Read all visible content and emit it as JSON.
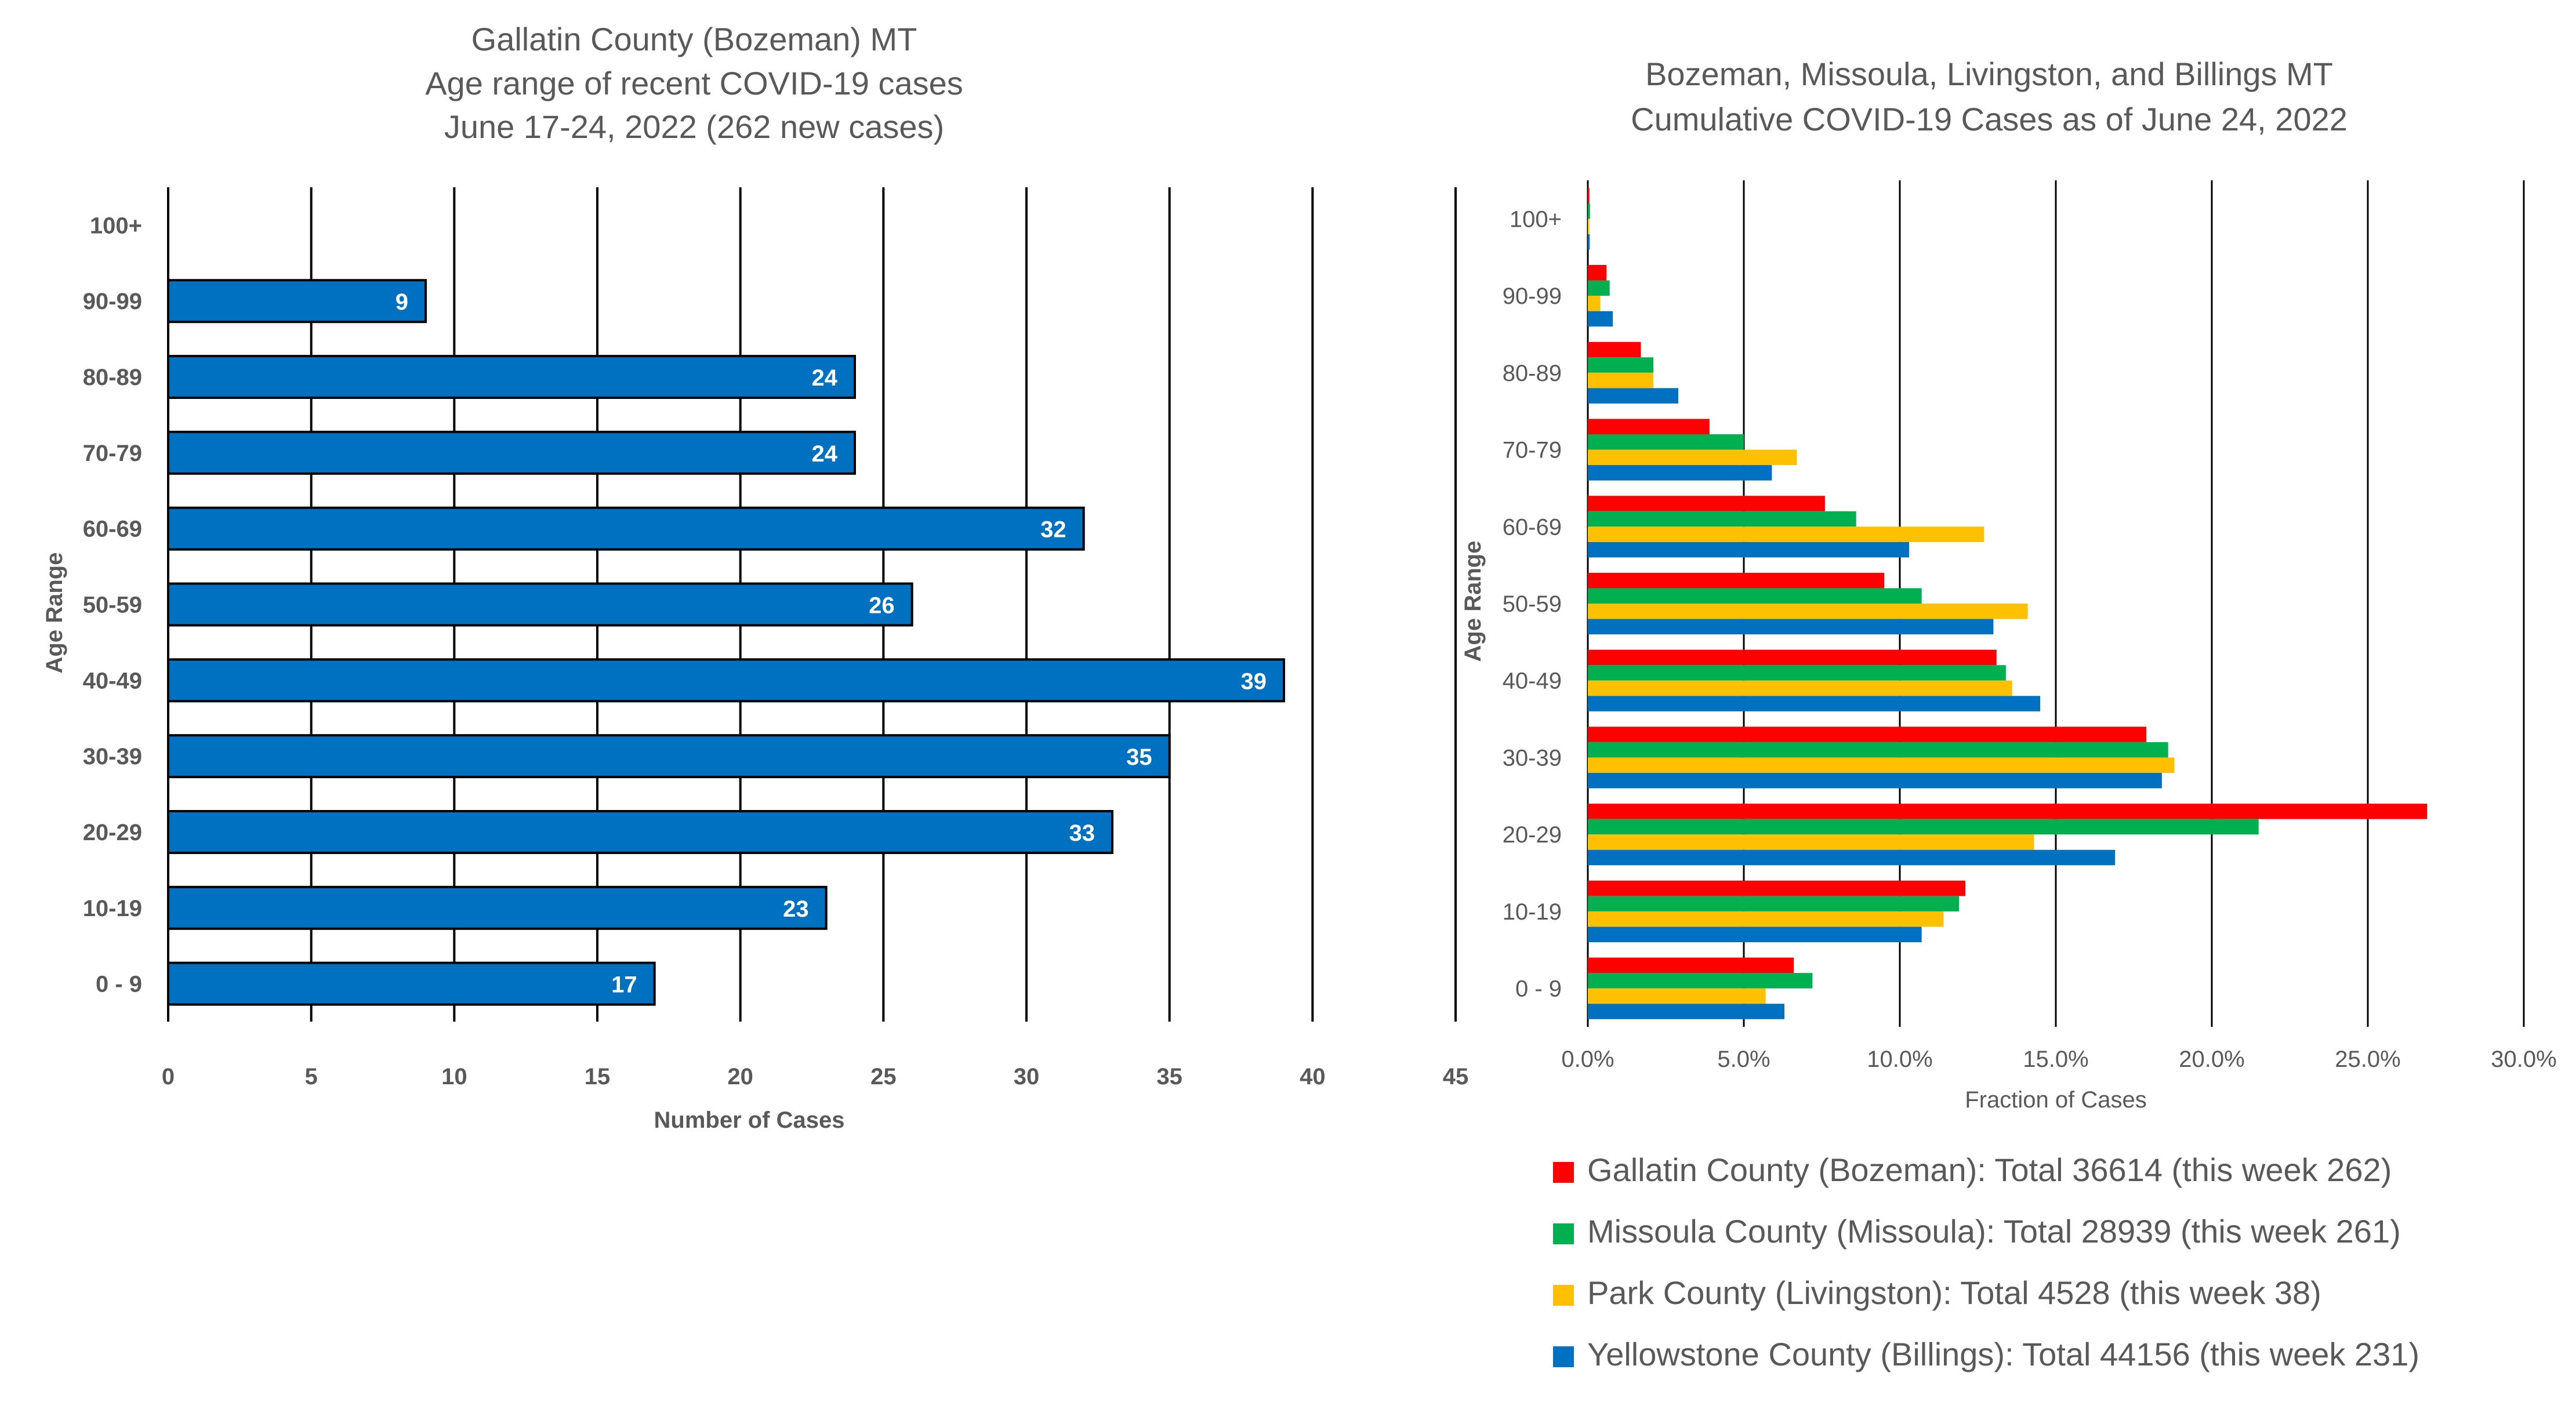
{
  "chart_data": [
    {
      "type": "bar",
      "orientation": "horizontal",
      "title_lines": [
        "Gallatin County (Bozeman) MT",
        "Age range of recent COVID-19 cases",
        "June 17-24, 2022 (262 new cases)"
      ],
      "xlabel": "Number of Cases",
      "ylabel": "Age Range",
      "xlim": [
        0,
        45
      ],
      "xticks": [
        0,
        5,
        10,
        15,
        20,
        25,
        30,
        35,
        40,
        45
      ],
      "xtick_labels": [
        "0",
        "5",
        "10",
        "15",
        "20",
        "25",
        "30",
        "35",
        "40",
        "45"
      ],
      "categories": [
        "100+",
        "90-99",
        "80-89",
        "70-79",
        "60-69",
        "50-59",
        "40-49",
        "30-39",
        "20-29",
        "10-19",
        "0 - 9"
      ],
      "values": [
        0,
        9,
        24,
        24,
        32,
        26,
        39,
        35,
        33,
        23,
        17
      ],
      "value_labels": [
        "",
        "9",
        "24",
        "24",
        "32",
        "26",
        "39",
        "35",
        "33",
        "23",
        "17"
      ],
      "bar_color": "#0070C0",
      "grid": "vertical lines",
      "legend": "none"
    },
    {
      "type": "bar",
      "orientation": "horizontal",
      "title_lines": [
        "Bozeman, Missoula, Livingston, and Billings MT",
        "Cumulative COVID-19 Cases as of June 24, 2022"
      ],
      "xlabel": "Fraction of Cases",
      "ylabel": "Age Range",
      "xlim": [
        0,
        30
      ],
      "xticks": [
        0,
        5,
        10,
        15,
        20,
        25,
        30
      ],
      "xtick_labels": [
        "0.0%",
        "5.0%",
        "10.0%",
        "15.0%",
        "20.0%",
        "25.0%",
        "30.0%"
      ],
      "categories": [
        "100+",
        "90-99",
        "80-89",
        "70-79",
        "60-69",
        "50-59",
        "40-49",
        "30-39",
        "20-29",
        "10-19",
        "0 - 9"
      ],
      "series": [
        {
          "name": "Gallatin County (Bozeman): Total 36614 (this week 262)",
          "color": "#FF0000",
          "values": [
            0.05,
            0.6,
            1.7,
            3.9,
            7.6,
            9.5,
            13.1,
            17.9,
            26.9,
            12.1,
            6.6
          ]
        },
        {
          "name": "Missoula County (Missoula): Total 28939 (this week 261)",
          "color": "#00B050",
          "values": [
            0.07,
            0.7,
            2.1,
            5.0,
            8.6,
            10.7,
            13.4,
            18.6,
            21.5,
            11.9,
            7.2
          ]
        },
        {
          "name": "Park County (Livingston): Total 4528 (this week 38)",
          "color": "#FFC000",
          "values": [
            0.05,
            0.4,
            2.1,
            6.7,
            12.7,
            14.1,
            13.6,
            18.8,
            14.3,
            11.4,
            5.7
          ]
        },
        {
          "name": "Yellowstone County (Billings): Total 44156 (this week 231)",
          "color": "#0070C0",
          "values": [
            0.06,
            0.8,
            2.9,
            5.9,
            10.3,
            13.0,
            14.5,
            18.4,
            16.9,
            10.7,
            6.3
          ]
        }
      ],
      "grid": "vertical lines",
      "legend": "bottom"
    }
  ]
}
